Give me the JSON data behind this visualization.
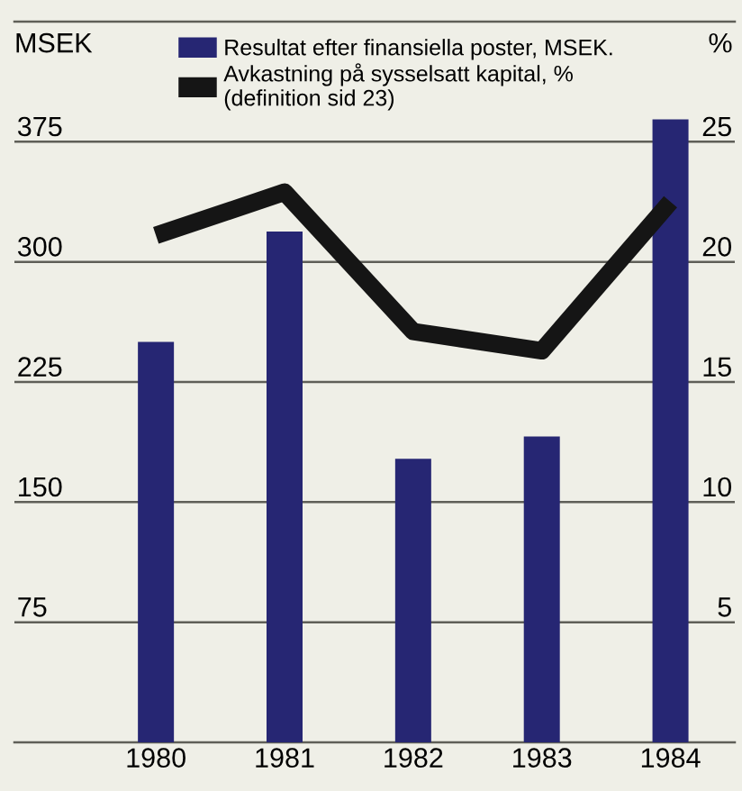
{
  "chart_data": {
    "type": "bar",
    "categories": [
      "1980",
      "1981",
      "1982",
      "1983",
      "1984"
    ],
    "series": [
      {
        "name": "Resultat efter finansiella poster, MSEK.",
        "color": "#262673",
        "values": [
          250,
          319,
          177,
          191,
          389
        ]
      },
      {
        "name": "Avkastning på sysselsatt kapital, %\n(definition sid 23)",
        "type": "line",
        "axis": "y2",
        "color": "#151515",
        "values": [
          21.1,
          22.9,
          17.1,
          16.3,
          22.5
        ]
      }
    ],
    "ylabel": "MSEK",
    "y2label": "%",
    "ylim": [
      0,
      450
    ],
    "yticks": [
      75,
      150,
      225,
      300,
      375
    ],
    "y2lim": [
      0,
      30
    ],
    "y2ticks": [
      5,
      10,
      15,
      20,
      25
    ],
    "grid": "y",
    "legend": "top",
    "marker": "none",
    "line_style": "solid"
  }
}
